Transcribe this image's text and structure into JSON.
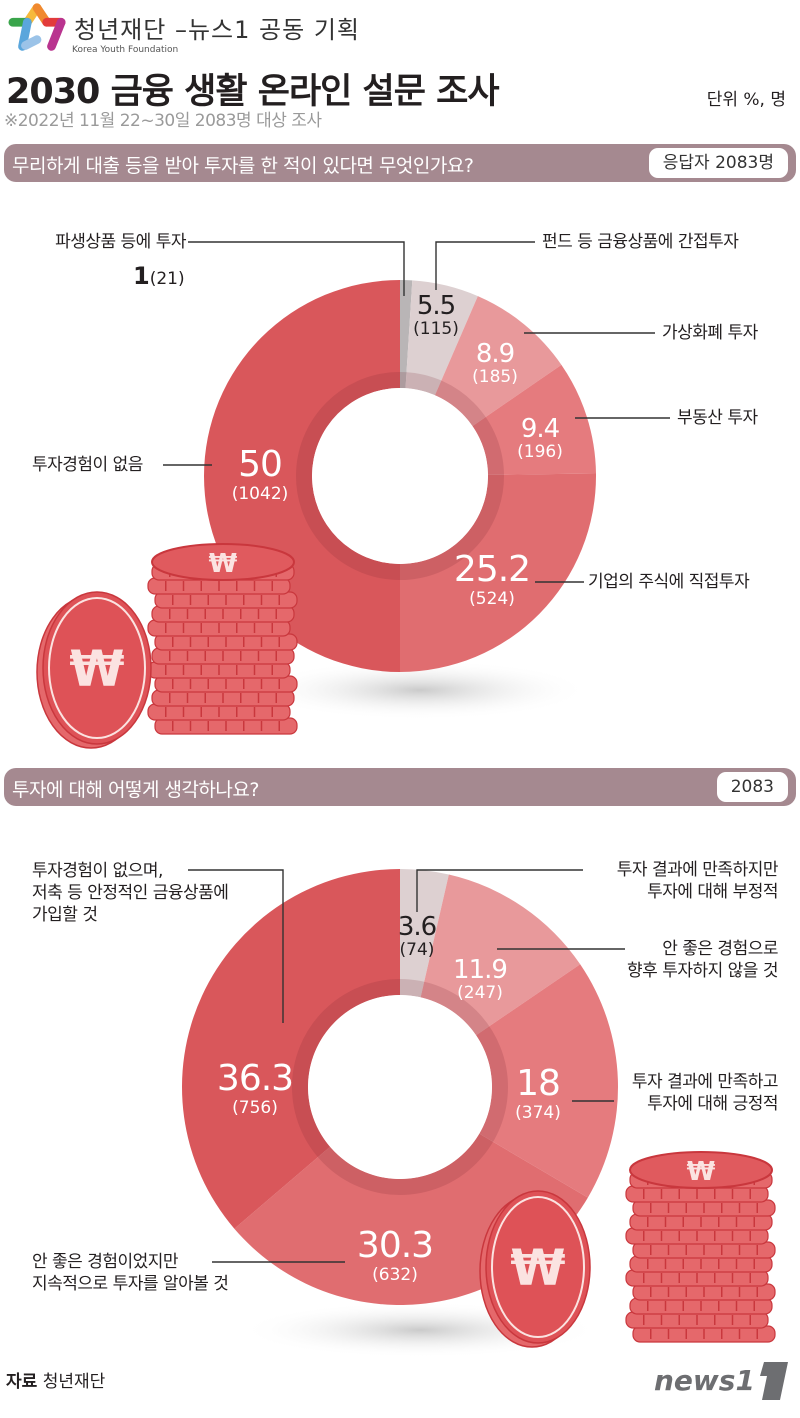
{
  "header": {
    "brand_ko": "청년재단",
    "brand_en": "Korea Youth Foundation",
    "collab": "–뉴스1 공동 기획",
    "title": "2030 금융 생활  온라인 설문 조사",
    "subtitle": "※2022년 11월 22~30일 2083명 대상 조사",
    "unit": "단위 %, 명"
  },
  "colors": {
    "question_bar": "#a58990",
    "red_dark": "#d9575b",
    "red_mid": "#e06d70",
    "red_light": "#e8999b",
    "pink_pale": "#ddd0d1",
    "gray": "#b9b5b6"
  },
  "questions": [
    {
      "text": "무리하게 대출 등을 받아 투자를 한 적이 있다면 무엇인가요?",
      "badge": "응답자 2083명"
    },
    {
      "text": "투자에 대해 어떻게 생각하나요?",
      "badge": "2083"
    }
  ],
  "chart_data": [
    {
      "type": "pie",
      "title": "무리하게 대출 등을 받아 투자를 한 적이 있다면 무엇인가요?",
      "subtitle": "응답자 2083명",
      "unit": "%, 명",
      "donut": true,
      "categories": [
        "파생상품 등에 투자",
        "펀드 등 금융상품에 간접투자",
        "가상화폐 투자",
        "부동산 투자",
        "기업의 주식에 직접투자",
        "투자경험이 없음"
      ],
      "values": [
        1,
        5.5,
        8.9,
        9.4,
        25.2,
        50
      ],
      "counts": [
        21,
        115,
        185,
        196,
        524,
        1042
      ],
      "labels_pct": [
        "1",
        "5.5",
        "8.9",
        "9.4",
        "25.2",
        "50"
      ],
      "labels_cnt": [
        "(21)",
        "(115)",
        "(185)",
        "(196)",
        "(524)",
        "(1042)"
      ],
      "colors": [
        "#b9b5b6",
        "#ddd0d1",
        "#e8999b",
        "#e57b7e",
        "#e06d70",
        "#d9575b"
      ]
    },
    {
      "type": "pie",
      "title": "투자에 대해 어떻게 생각하나요?",
      "subtitle": "2083",
      "unit": "%, 명",
      "donut": true,
      "categories": [
        "투자 결과에 만족하지만 투자에 대해 부정적",
        "안 좋은 경험으로 향후 투자하지 않을 것",
        "투자 결과에 만족하고 투자에 대해 긍정적",
        "안 좋은 경험이었지만 지속적으로 투자를 알아볼 것",
        "투자경험이 없으며, 저축 등 안정적인 금융상품에 가입할 것"
      ],
      "values": [
        3.6,
        11.9,
        18,
        30.3,
        36.3
      ],
      "counts": [
        74,
        247,
        374,
        632,
        756
      ],
      "labels_pct": [
        "3.6",
        "11.9",
        "18",
        "30.3",
        "36.3"
      ],
      "labels_cnt": [
        "(74)",
        "(247)",
        "(374)",
        "(632)",
        "(756)"
      ],
      "colors": [
        "#ddd0d1",
        "#e8999b",
        "#e57b7e",
        "#e06d70",
        "#d9575b"
      ]
    }
  ],
  "chart1_labels": {
    "derivatives": "파생상품 등에 투자",
    "derivatives_val": "1",
    "derivatives_cnt": "(21)",
    "fund": "펀드 등 금융상품에 간접투자",
    "crypto": "가상화폐 투자",
    "realestate": "부동산 투자",
    "stocks": "기업의 주식에 직접투자",
    "none": "투자경험이 없음"
  },
  "chart2_labels": {
    "neg_line1": "투자 결과에 만족하지만",
    "neg_line2": "투자에 대해 부정적",
    "quit_line1": "안 좋은 경험으로",
    "quit_line2": "향후 투자하지 않을 것",
    "pos_line1": "투자 결과에 만족하고",
    "pos_line2": "투자에 대해 긍정적",
    "cont_line1": "안 좋은 경험이었지만",
    "cont_line2": "지속적으로 투자를 알아볼 것",
    "save_line1": "투자경험이 없으며,",
    "save_line2": "저축 등 안정적인 금융상품에",
    "save_line3": "가입할 것"
  },
  "footer": {
    "source_label": "자료",
    "source_value": "청년재단",
    "logo_text": "news1"
  }
}
